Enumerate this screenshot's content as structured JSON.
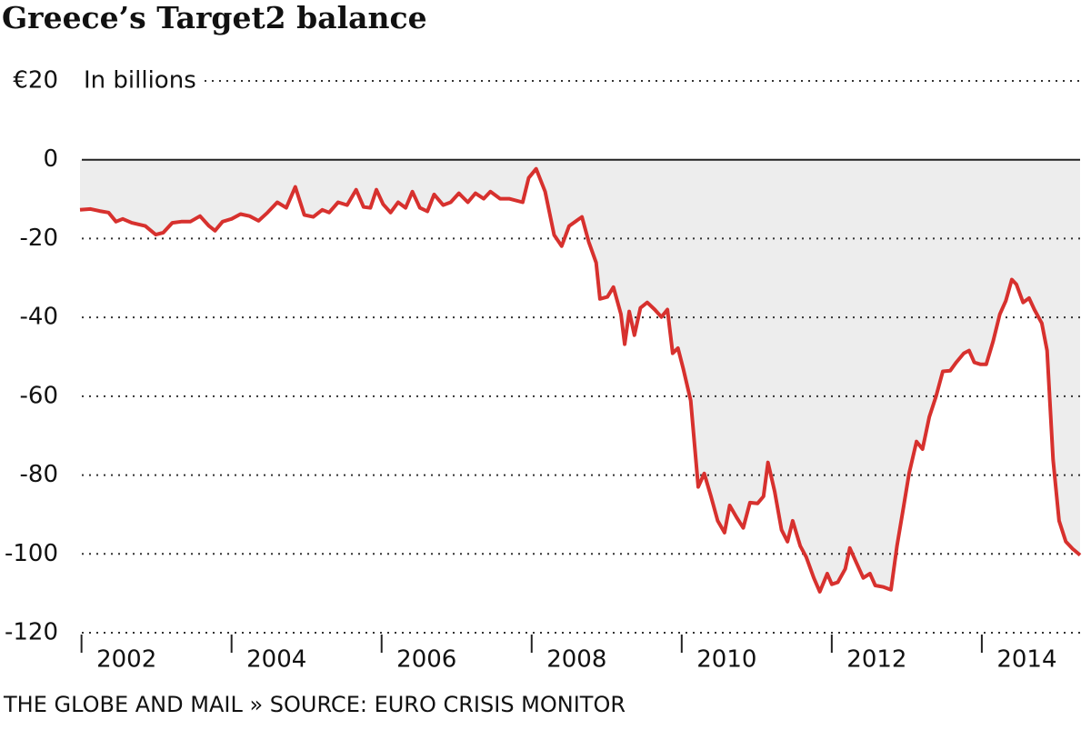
{
  "chart_data": {
    "type": "line",
    "title": "Greece’s Target2 balance",
    "y_label": "In billions",
    "source": "THE GLOBE AND MAIL » SOURCE: EURO CRISIS MONITOR",
    "x": [
      2001.98,
      2002.12,
      2002.24,
      2002.36,
      2002.46,
      2002.55,
      2002.67,
      2002.85,
      2002.99,
      2003.09,
      2003.21,
      2003.33,
      2003.45,
      2003.58,
      2003.7,
      2003.78,
      2003.88,
      2004.0,
      2004.12,
      2004.24,
      2004.36,
      2004.48,
      2004.61,
      2004.73,
      2004.85,
      2004.97,
      2005.09,
      2005.21,
      2005.3,
      2005.42,
      2005.54,
      2005.66,
      2005.76,
      2005.85,
      2005.93,
      2006.02,
      2006.12,
      2006.22,
      2006.32,
      2006.41,
      2006.51,
      2006.61,
      2006.7,
      2006.82,
      2006.92,
      2007.03,
      2007.15,
      2007.25,
      2007.36,
      2007.45,
      2007.58,
      2007.7,
      2007.88,
      2007.96,
      2008.06,
      2008.18,
      2008.3,
      2008.4,
      2008.5,
      2008.67,
      2008.76,
      2008.86,
      2008.91,
      2009.01,
      2009.09,
      2009.19,
      2009.24,
      2009.3,
      2009.37,
      2009.45,
      2009.54,
      2009.64,
      2009.73,
      2009.81,
      2009.88,
      2009.95,
      2010.02,
      2010.12,
      2010.22,
      2010.3,
      2010.39,
      2010.48,
      2010.57,
      2010.64,
      2010.73,
      2010.82,
      2010.91,
      2011.01,
      2011.09,
      2011.15,
      2011.24,
      2011.33,
      2011.41,
      2011.48,
      2011.58,
      2011.66,
      2011.76,
      2011.84,
      2011.94,
      2012.0,
      2012.08,
      2012.18,
      2012.24,
      2012.33,
      2012.42,
      2012.51,
      2012.58,
      2012.69,
      2012.79,
      2012.87,
      2012.96,
      2013.03,
      2013.13,
      2013.21,
      2013.3,
      2013.39,
      2013.48,
      2013.58,
      2013.66,
      2013.76,
      2013.83,
      2013.9,
      2013.98,
      2014.06,
      2014.15,
      2014.24,
      2014.32,
      2014.4,
      2014.46,
      2014.55,
      2014.63,
      2014.7,
      2014.8,
      2014.87,
      2014.95,
      2015.03,
      2015.12,
      2015.21,
      2015.31
    ],
    "series": [
      {
        "name": "Target2 balance",
        "color": "#d7312e",
        "values": [
          -12.7,
          -12.5,
          -13,
          -13.4,
          -15.7,
          -15,
          -16,
          -16.8,
          -19,
          -18.5,
          -16,
          -15.7,
          -15.7,
          -14.3,
          -16.8,
          -18,
          -15.7,
          -15,
          -13.8,
          -14.3,
          -15.5,
          -13.4,
          -10.8,
          -12.2,
          -6.9,
          -14,
          -14.5,
          -12.7,
          -13.4,
          -10.8,
          -11.5,
          -7.6,
          -12,
          -12.2,
          -7.6,
          -11.3,
          -13.4,
          -10.8,
          -12.2,
          -8.1,
          -12.2,
          -13.1,
          -8.8,
          -11.5,
          -10.8,
          -8.5,
          -10.8,
          -8.5,
          -9.9,
          -8.1,
          -9.9,
          -9.9,
          -10.8,
          -4.6,
          -2.3,
          -8.1,
          -19.1,
          -21.9,
          -16.8,
          -14.5,
          -20.8,
          -26.1,
          -35.3,
          -34.8,
          -32.3,
          -39.2,
          -46.8,
          -38.5,
          -44.5,
          -37.6,
          -36.2,
          -38,
          -39.9,
          -38,
          -49.1,
          -47.8,
          -53,
          -61.1,
          -83,
          -79.6,
          -85.4,
          -91.6,
          -94.6,
          -87.7,
          -90.7,
          -93.4,
          -87,
          -87.2,
          -85.4,
          -76.8,
          -84.2,
          -93.9,
          -96.9,
          -91.6,
          -98,
          -100.8,
          -106.1,
          -109.6,
          -105,
          -107.7,
          -107.2,
          -103.8,
          -98.5,
          -102.3,
          -106.1,
          -105,
          -108,
          -108.4,
          -109.1,
          -98,
          -87.7,
          -79.6,
          -71.5,
          -73.4,
          -65.3,
          -60,
          -53.7,
          -53.5,
          -51.4,
          -49.1,
          -48.4,
          -51.4,
          -51.9,
          -51.9,
          -46.1,
          -39.2,
          -35.8,
          -30.4,
          -31.6,
          -36.2,
          -35.1,
          -38,
          -41.5,
          -48.4,
          -76.1,
          -91.6,
          -96.9,
          -98.7,
          -100.3
        ]
      }
    ],
    "xlim": [
      2001.98,
      2015.31
    ],
    "xticks": [
      2002,
      2004,
      2006,
      2008,
      2010,
      2012,
      2014
    ],
    "ylim": [
      -120,
      20
    ],
    "yticks": [
      {
        "value": 20,
        "label": "€20"
      },
      0,
      -20,
      -40,
      -60,
      -80,
      -100,
      -120
    ],
    "fill_color": "#ededed",
    "grid": true
  }
}
